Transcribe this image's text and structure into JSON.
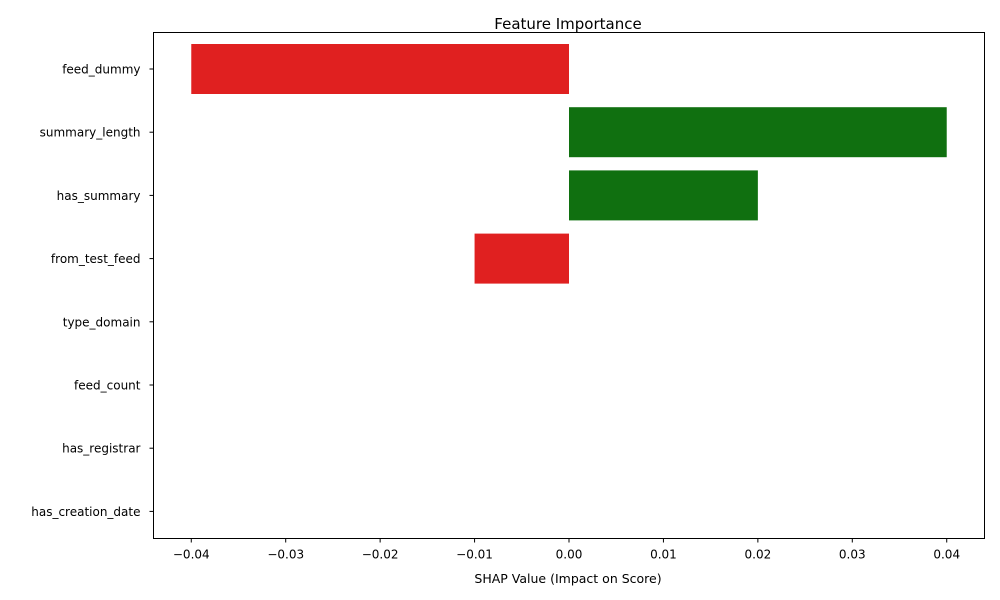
{
  "chart_data": {
    "type": "bar",
    "orientation": "horizontal",
    "title": "Feature Importance",
    "xlabel": "SHAP Value (Impact on Score)",
    "ylabel": "",
    "categories": [
      "feed_dummy",
      "summary_length",
      "has_summary",
      "from_test_feed",
      "type_domain",
      "feed_count",
      "has_registrar",
      "has_creation_date"
    ],
    "values": [
      -0.04,
      0.04,
      0.02,
      -0.01,
      0.0,
      0.0,
      0.0,
      0.0
    ],
    "xlim": [
      -0.044,
      0.044
    ],
    "xticks": [
      -0.04,
      -0.03,
      -0.02,
      -0.01,
      0.0,
      0.01,
      0.02,
      0.03,
      0.04
    ],
    "xtick_labels": [
      "−0.04",
      "−0.03",
      "−0.02",
      "−0.01",
      "0.00",
      "0.01",
      "0.02",
      "0.03",
      "0.04"
    ],
    "colors": {
      "positive": "#107010",
      "negative": "#e02020"
    },
    "grid": false,
    "legend": "none"
  }
}
